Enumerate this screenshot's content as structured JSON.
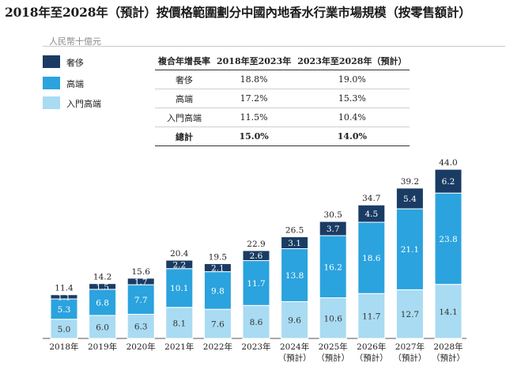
{
  "title": "2018年至2028年（預計）按價格範圍劃分中國內地香水行業市場規模（按零售額計）",
  "unit": "人民幣十億元",
  "colors": {
    "luxury": "#1a3c64",
    "high_end": "#2ba3de",
    "entry": "#a9dbf2"
  },
  "legend": [
    {
      "label": "奢侈",
      "color": "#1a3c64"
    },
    {
      "label": "高端",
      "color": "#2ba3de"
    },
    {
      "label": "入門高端",
      "color": "#a9dbf2"
    }
  ],
  "table": {
    "headers": [
      "複合年增長率",
      "2018年至2023年",
      "2023年至2028年（預計）"
    ],
    "rows": [
      [
        "奢侈",
        "18.8%",
        "19.0%"
      ],
      [
        "高端",
        "17.2%",
        "15.3%"
      ],
      [
        "入門高端",
        "11.5%",
        "10.4%"
      ]
    ],
    "total": [
      "總計",
      "15.0%",
      "14.0%"
    ]
  },
  "chart_data": {
    "type": "bar",
    "stacked": true,
    "categories": [
      "2018年",
      "2019年",
      "2020年",
      "2021年",
      "2022年",
      "2023年",
      "2024年",
      "2025年",
      "2026年",
      "2027年",
      "2028年"
    ],
    "category_sublabels": [
      "",
      "",
      "",
      "",
      "",
      "",
      "（預計）",
      "（預計）",
      "（預計）",
      "（預計）",
      "（預計）"
    ],
    "series": [
      {
        "name": "入門高端",
        "values": [
          5.0,
          6.0,
          6.3,
          8.1,
          7.6,
          8.6,
          9.6,
          10.6,
          11.7,
          12.7,
          14.1
        ]
      },
      {
        "name": "高端",
        "values": [
          5.3,
          6.8,
          7.7,
          10.1,
          9.8,
          11.7,
          13.8,
          16.2,
          18.6,
          21.1,
          23.8
        ]
      },
      {
        "name": "奢侈",
        "values": [
          1.1,
          1.5,
          1.7,
          2.2,
          2.1,
          2.6,
          3.1,
          3.7,
          4.5,
          5.4,
          6.2
        ]
      }
    ],
    "totals": [
      11.4,
      14.2,
      15.6,
      20.4,
      19.5,
      22.9,
      26.5,
      30.5,
      34.7,
      39.2,
      44.0
    ],
    "ylim": [
      0,
      44
    ]
  }
}
